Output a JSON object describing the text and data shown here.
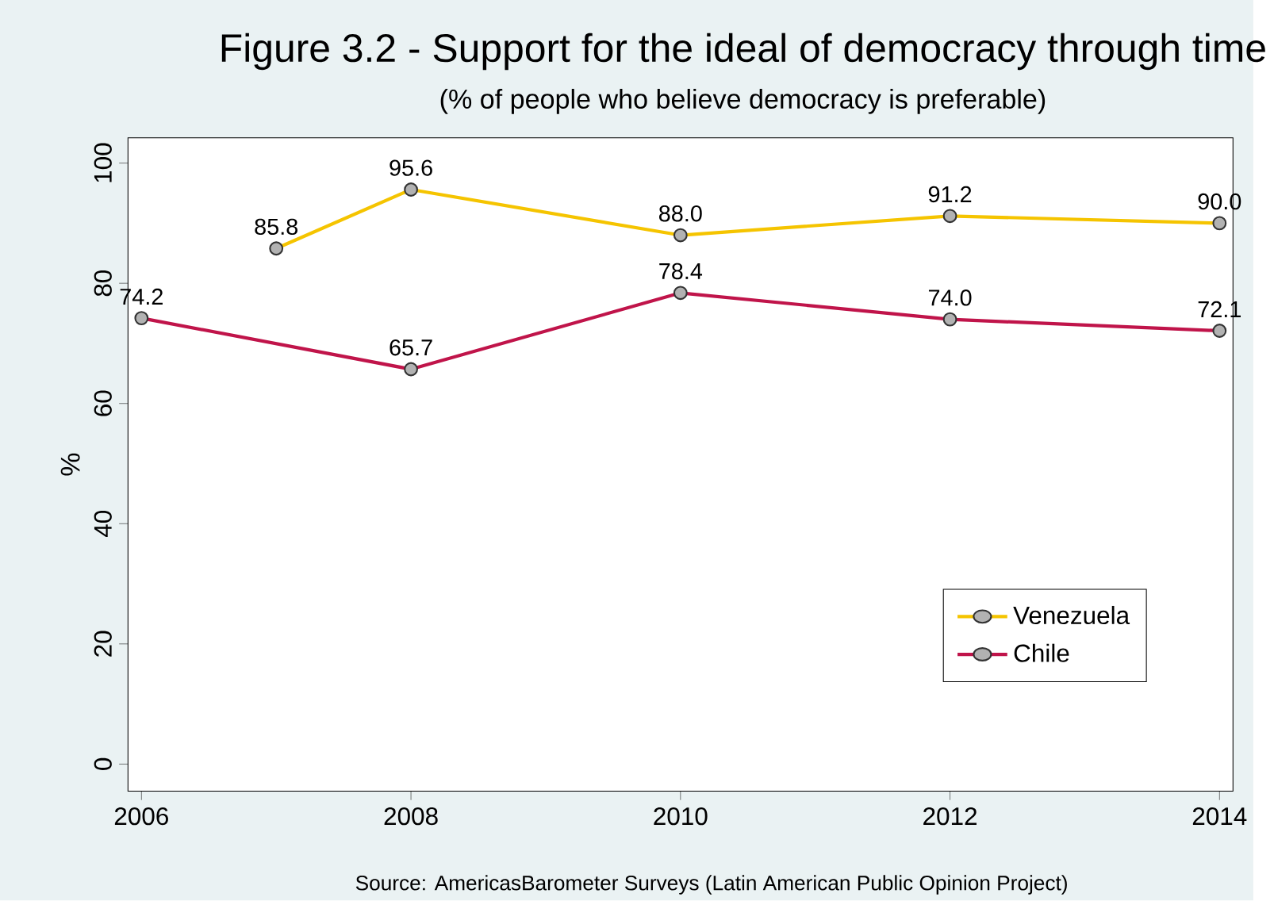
{
  "chart_data": {
    "type": "line",
    "title": "Figure 3.2 - Support for the ideal of democracy through time",
    "subtitle": "(% of people who believe democracy is preferable)",
    "ylabel": "%",
    "annotations": [
      "Source: AmericasBarometer Surveys (Latin American Public Opinion Project)"
    ],
    "xlim": [
      2005.9,
      2014.1
    ],
    "ylim": [
      -4.5,
      104.2
    ],
    "xticks": [
      2006,
      2008,
      2010,
      2012,
      2014
    ],
    "yticks": [
      0,
      20,
      40,
      60,
      80,
      100
    ],
    "series": [
      {
        "name": "Venezuela",
        "color": "#f5c400",
        "x": [
          2007,
          2008,
          2010,
          2012,
          2014
        ],
        "values": [
          85.8,
          95.6,
          88.0,
          91.2,
          90.0
        ],
        "value_labels": [
          "85.8",
          "95.6",
          "88.0",
          "91.2",
          "90.0"
        ]
      },
      {
        "name": "Chile",
        "color": "#c0144a",
        "x": [
          2006,
          2008,
          2010,
          2012,
          2014
        ],
        "values": [
          74.2,
          65.7,
          78.4,
          74.0,
          72.1
        ],
        "value_labels": [
          "74.2",
          "65.7",
          "78.4",
          "74.0",
          "72.1"
        ]
      }
    ],
    "marker": "circle",
    "line_style": "solid",
    "legend": "bottom right"
  }
}
